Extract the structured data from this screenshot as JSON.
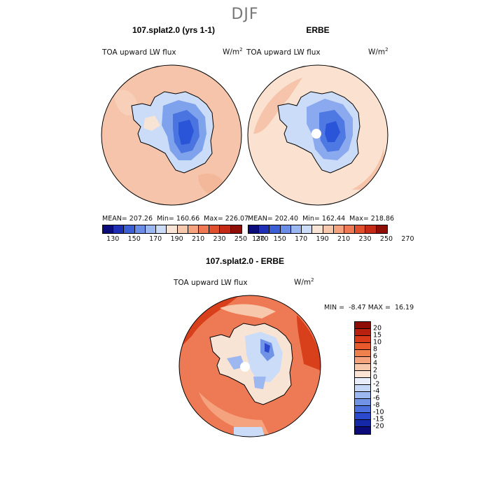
{
  "title": "DJF",
  "panels": [
    {
      "title": "107.splat2.0 (yrs 1-1)",
      "variable": "TOA upward LW flux",
      "units_base": "W/m",
      "units_sup": "2",
      "stats": "MEAN= 207.26  Min= 160.66  Max= 226.07"
    },
    {
      "title": "ERBE",
      "variable": "TOA upward LW flux",
      "units_base": "W/m",
      "units_sup": "2",
      "stats": "MEAN= 202.40  Min= 162.44  Max= 218.86"
    },
    {
      "title": "107.splat2.0 - ERBE",
      "variable": "TOA upward LW flux",
      "units_base": "W/m",
      "units_sup": "2",
      "stats": "MIN =  -8.47 MAX =  16.19"
    }
  ],
  "colorbar_top": {
    "colors": [
      "#0b0b7a",
      "#1f2fb5",
      "#3d5fd6",
      "#6a8ee8",
      "#9bb7f2",
      "#cbdcf8",
      "#f8e4d4",
      "#f8c8ac",
      "#f5a27e",
      "#ee7a55",
      "#e0502f",
      "#c42a16",
      "#8e0d06"
    ],
    "ticks": [
      "130",
      "150",
      "170",
      "190",
      "210",
      "230",
      "250",
      "270"
    ]
  },
  "colorbar_diff": {
    "colors": [
      "#8e0d06",
      "#b8200f",
      "#d83a1a",
      "#e85a2c",
      "#f0804e",
      "#f5a27e",
      "#f8c8ac",
      "#fbe4d4",
      "#e8eefb",
      "#c6d6f6",
      "#9db7f0",
      "#7193e6",
      "#4b6fdc",
      "#2a49cc",
      "#1428a8",
      "#0b0b7a"
    ],
    "labels": [
      "20",
      "15",
      "10",
      "8",
      "6",
      "4",
      "2",
      "0",
      "-2",
      "-4",
      "-6",
      "-8",
      "-10",
      "-15",
      "-20"
    ]
  },
  "colors": {
    "ocean_top_left": "#f6c4aa",
    "ocean_top_right": "#fbe2d0",
    "antarctica_high": "#5a86e8",
    "antarctica_core": "#2a55d8",
    "diff_ocean": "#ee7a55",
    "diff_ocean_dark": "#d8401c",
    "diff_light": "#f8c8ac"
  }
}
